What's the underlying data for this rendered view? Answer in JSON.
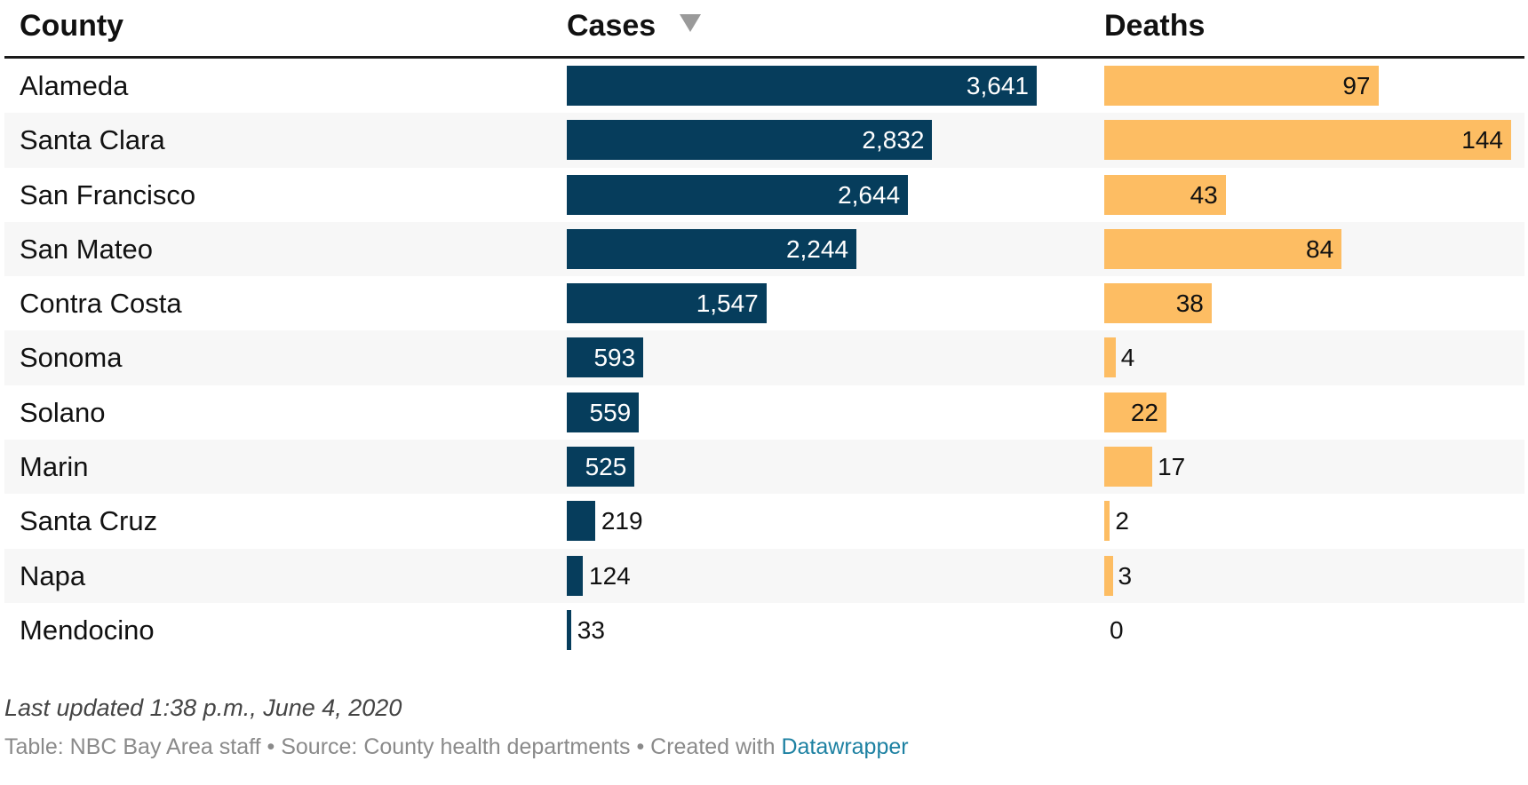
{
  "header": {
    "county": "County",
    "cases": "Cases",
    "deaths": "Deaths"
  },
  "rows": [
    {
      "county": "Alameda",
      "cases": "3,641",
      "deaths": "97"
    },
    {
      "county": "Santa Clara",
      "cases": "2,832",
      "deaths": "144"
    },
    {
      "county": "San Francisco",
      "cases": "2,644",
      "deaths": "43"
    },
    {
      "county": "San Mateo",
      "cases": "2,244",
      "deaths": "84"
    },
    {
      "county": "Contra Costa",
      "cases": "1,547",
      "deaths": "38"
    },
    {
      "county": "Sonoma",
      "cases": "593",
      "deaths": "4"
    },
    {
      "county": "Solano",
      "cases": "559",
      "deaths": "22"
    },
    {
      "county": "Marin",
      "cases": "525",
      "deaths": "17"
    },
    {
      "county": "Santa Cruz",
      "cases": "219",
      "deaths": "2"
    },
    {
      "county": "Napa",
      "cases": "124",
      "deaths": "3"
    },
    {
      "county": "Mendocino",
      "cases": "33",
      "deaths": "0"
    }
  ],
  "footer": {
    "updated": "Last updated 1:38 p.m., June 4, 2020",
    "notes_prefix": "Table: NBC Bay Area staff • Source: County health departments • Created with ",
    "notes_link": "Datawrapper"
  },
  "colors": {
    "cases_bar": "#063d5c",
    "deaths_bar": "#fdbd63",
    "link": "#1d81a2",
    "alt_row": "#f7f7f7"
  },
  "icons": {
    "sort": "sort-desc-triangle-icon"
  },
  "chart_data": {
    "type": "table",
    "columns": [
      "County",
      "Cases",
      "Deaths"
    ],
    "categories": [
      "Alameda",
      "Santa Clara",
      "San Francisco",
      "San Mateo",
      "Contra Costa",
      "Sonoma",
      "Solano",
      "Marin",
      "Santa Cruz",
      "Napa",
      "Mendocino"
    ],
    "series": [
      {
        "name": "Cases",
        "values": [
          3641,
          2832,
          2644,
          2244,
          1547,
          593,
          559,
          525,
          219,
          124,
          33
        ]
      },
      {
        "name": "Deaths",
        "values": [
          97,
          144,
          43,
          84,
          38,
          4,
          22,
          17,
          2,
          3,
          0
        ]
      }
    ],
    "sorted_by": "Cases",
    "sort_order": "descending"
  }
}
